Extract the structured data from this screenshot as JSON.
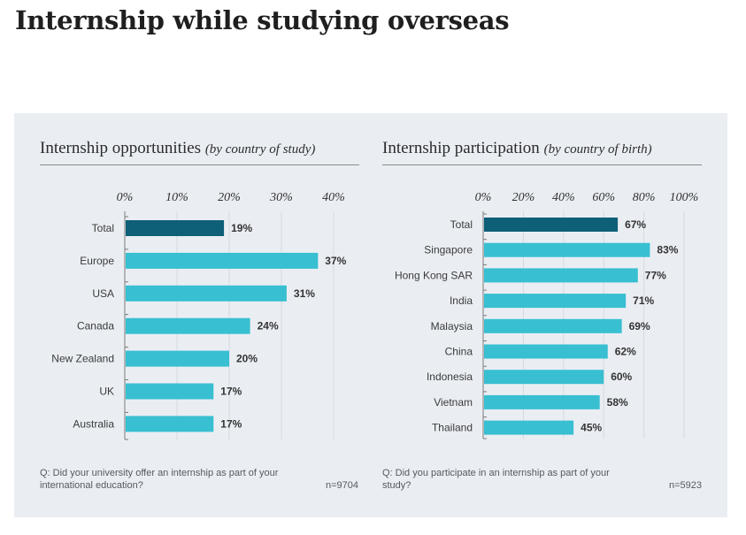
{
  "page": {
    "title": "Internship while studying overseas"
  },
  "colors": {
    "highlight": "#0e5f78",
    "bar": "#38bfd1",
    "grid": "#d4d9e0",
    "axis": "#7a7a7a"
  },
  "chart_data": [
    {
      "type": "bar",
      "orientation": "horizontal",
      "title": "Internship opportunities",
      "subtitle": "(by country of study)",
      "categories": [
        "Total",
        "Europe",
        "USA",
        "Canada",
        "New Zealand",
        "UK",
        "Australia"
      ],
      "values": [
        19,
        37,
        31,
        24,
        20,
        17,
        17
      ],
      "value_labels": [
        "19%",
        "37%",
        "31%",
        "24%",
        "20%",
        "17%",
        "17%"
      ],
      "xlim": [
        0,
        40
      ],
      "xticks": [
        0,
        10,
        20,
        30,
        40
      ],
      "xtick_labels": [
        "0%",
        "10%",
        "20%",
        "30%",
        "40%"
      ],
      "highlight_category": "Total",
      "question": "Q: Did your university offer an internship as part of your international education?",
      "n": "n=9704",
      "grid": true
    },
    {
      "type": "bar",
      "orientation": "horizontal",
      "title": "Internship participation",
      "subtitle": "by country of birth",
      "categories": [
        "Total",
        "Singapore",
        "Hong Kong SAR",
        "India",
        "Malaysia",
        "China",
        "Indonesia",
        "Vietnam",
        "Thailand"
      ],
      "values": [
        67,
        83,
        77,
        71,
        69,
        62,
        60,
        58,
        45
      ],
      "value_labels": [
        "67%",
        "83%",
        "77%",
        "71%",
        "69%",
        "62%",
        "60%",
        "58%",
        "45%"
      ],
      "xlim": [
        0,
        100
      ],
      "xticks": [
        0,
        20,
        40,
        60,
        80,
        100
      ],
      "xtick_labels": [
        "0%",
        "20%",
        "40%",
        "60%",
        "80%",
        "100%"
      ],
      "highlight_category": "Total",
      "question": "Q: Did you participate in an internship as part of your study?",
      "n": "n=5923",
      "grid": true
    }
  ]
}
